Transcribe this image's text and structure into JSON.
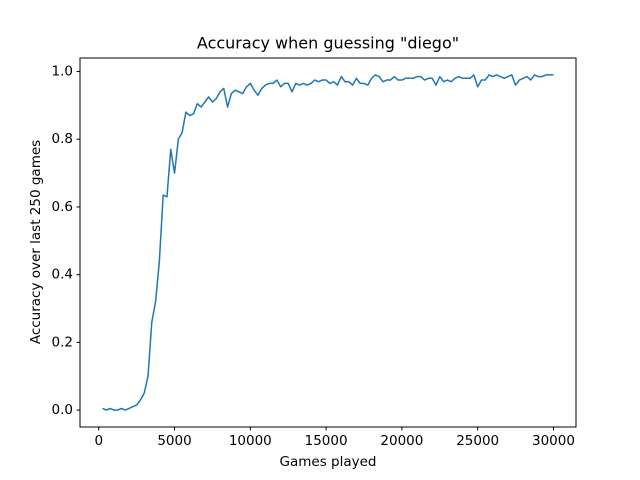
{
  "chart_data": {
    "type": "line",
    "title": "Accuracy when guessing \"diego\"",
    "x_label": "Games played",
    "y_label": "Accuracy over last 250 games",
    "x": [
      250,
      500,
      750,
      1000,
      1250,
      1500,
      1750,
      2000,
      2250,
      2500,
      2750,
      3000,
      3250,
      3500,
      3750,
      4000,
      4250,
      4500,
      4750,
      5000,
      5250,
      5500,
      5750,
      6000,
      6250,
      6500,
      6750,
      7000,
      7250,
      7500,
      7750,
      8000,
      8250,
      8500,
      8750,
      9000,
      9250,
      9500,
      9750,
      10000,
      10250,
      10500,
      10750,
      11000,
      11250,
      11500,
      11750,
      12000,
      12250,
      12500,
      12750,
      13000,
      13250,
      13500,
      13750,
      14000,
      14250,
      14500,
      14750,
      15000,
      15250,
      15500,
      15750,
      16000,
      16250,
      16500,
      16750,
      17000,
      17250,
      17500,
      17750,
      18000,
      18250,
      18500,
      18750,
      19000,
      19250,
      19500,
      19750,
      20000,
      20250,
      20500,
      20750,
      21000,
      21250,
      21500,
      21750,
      22000,
      22250,
      22500,
      22750,
      23000,
      23250,
      23500,
      23750,
      24000,
      24250,
      24500,
      24750,
      25000,
      25250,
      25500,
      25750,
      26000,
      26250,
      26500,
      26750,
      27000,
      27250,
      27500,
      27750,
      28000,
      28250,
      28500,
      28750,
      29000,
      29250,
      29500,
      29750,
      30000
    ],
    "series": [
      {
        "name": "accuracy",
        "color": "#1f77b4",
        "values": [
          0.005,
          0,
          0.005,
          0,
          0,
          0.005,
          0,
          0.005,
          0.01,
          0.015,
          0.03,
          0.05,
          0.1,
          0.26,
          0.32,
          0.44,
          0.635,
          0.63,
          0.77,
          0.7,
          0.8,
          0.82,
          0.88,
          0.87,
          0.875,
          0.905,
          0.895,
          0.91,
          0.925,
          0.91,
          0.92,
          0.94,
          0.95,
          0.895,
          0.935,
          0.945,
          0.94,
          0.935,
          0.955,
          0.965,
          0.945,
          0.93,
          0.95,
          0.96,
          0.965,
          0.965,
          0.975,
          0.955,
          0.965,
          0.965,
          0.94,
          0.965,
          0.96,
          0.965,
          0.96,
          0.965,
          0.975,
          0.97,
          0.975,
          0.975,
          0.965,
          0.97,
          0.96,
          0.985,
          0.97,
          0.97,
          0.96,
          0.98,
          0.965,
          0.965,
          0.96,
          0.98,
          0.99,
          0.985,
          0.97,
          0.975,
          0.975,
          0.985,
          0.975,
          0.975,
          0.98,
          0.98,
          0.98,
          0.985,
          0.985,
          0.975,
          0.98,
          0.98,
          0.96,
          0.985,
          0.97,
          0.975,
          0.97,
          0.98,
          0.985,
          0.98,
          0.98,
          0.98,
          0.99,
          0.955,
          0.975,
          0.975,
          0.99,
          0.985,
          0.99,
          0.985,
          0.98,
          0.985,
          0.99,
          0.96,
          0.975,
          0.98,
          0.985,
          0.975,
          0.99,
          0.985,
          0.985,
          0.99,
          0.99,
          0.99
        ]
      }
    ],
    "xlim": [
      -1237,
      31487
    ],
    "ylim": [
      -0.05,
      1.04
    ],
    "xticks": [
      0,
      5000,
      10000,
      15000,
      20000,
      25000,
      30000
    ],
    "yticks": [
      {
        "value": 0,
        "label": "0.0"
      },
      {
        "value": 0.2,
        "label": "0.2"
      },
      {
        "value": 0.4,
        "label": "0.4"
      },
      {
        "value": 0.6,
        "label": "0.6"
      },
      {
        "value": 0.8,
        "label": "0.8"
      },
      {
        "value": 1,
        "label": "1.0"
      }
    ],
    "grid": false
  }
}
